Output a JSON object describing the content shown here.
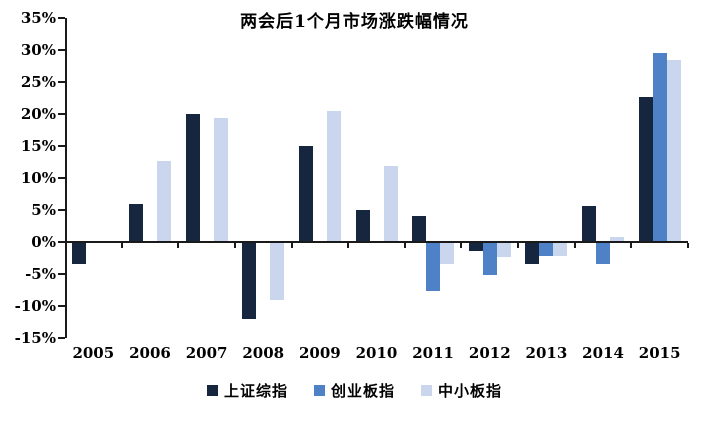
{
  "chart_data": {
    "type": "bar",
    "title": "两会后1个月市场涨跌幅情况",
    "categories": [
      "2005",
      "2006",
      "2007",
      "2008",
      "2009",
      "2010",
      "2011",
      "2012",
      "2013",
      "2014",
      "2015"
    ],
    "series": [
      {
        "key": "sh-composite",
        "name": "上证综指",
        "color": "#17263F",
        "values": [
          -3.5,
          5.9,
          20.0,
          -12.1,
          15.0,
          5.0,
          4.0,
          -1.4,
          -3.5,
          5.6,
          22.7
        ]
      },
      {
        "key": "chinext",
        "name": "创业板指",
        "color": "#4F81C7",
        "values": [
          null,
          null,
          null,
          null,
          null,
          null,
          -7.6,
          -5.2,
          -2.2,
          -3.4,
          29.6
        ]
      },
      {
        "key": "sme-board",
        "name": "中小板指",
        "color": "#C9D6EE",
        "values": [
          null,
          12.7,
          19.4,
          -9.0,
          20.5,
          11.8,
          -3.4,
          -2.4,
          -2.2,
          0.8,
          28.5
        ]
      }
    ],
    "ylabel": "",
    "xlabel": "",
    "ylim": [
      -15,
      35
    ],
    "ytick_step": 5,
    "y_tick_labels": [
      "35%",
      "30%",
      "25%",
      "20%",
      "15%",
      "10%",
      "5%",
      "0%",
      "-5%",
      "-10%",
      "-15%"
    ],
    "legend_position": "bottom",
    "grid": false,
    "axis_color": "#1a1a1a",
    "text_color": "#000000"
  }
}
